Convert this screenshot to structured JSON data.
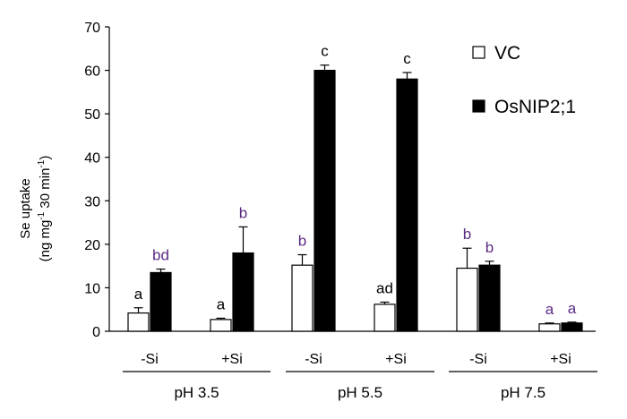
{
  "chart_data": {
    "type": "bar",
    "ylabel_line1": "Se uptake",
    "ylabel_line2_parts": [
      "(ng mg",
      "-1",
      " 30 min",
      "-1",
      ")"
    ],
    "ylim": [
      0,
      70
    ],
    "yticks": [
      0,
      10,
      20,
      30,
      40,
      50,
      60,
      70
    ],
    "legend": {
      "placement": "top-right"
    },
    "series": [
      {
        "name": "VC",
        "fill": "#ffffff"
      },
      {
        "name": "OsNIP2;1",
        "fill": "#000000"
      }
    ],
    "treatment_labels": [
      "-Si",
      "+Si",
      "-Si",
      "+Si",
      "-Si",
      "+Si"
    ],
    "groups": [
      "pH 3.5",
      "pH 5.5",
      "pH 7.5"
    ],
    "bars": [
      {
        "series": "VC",
        "treatment": "-Si",
        "group": "pH 3.5",
        "value": 4.2,
        "err": 1.2,
        "sig": "a"
      },
      {
        "series": "OsNIP2;1",
        "treatment": "-Si",
        "group": "pH 3.5",
        "value": 13.5,
        "err": 0.8,
        "sig": "bd"
      },
      {
        "series": "VC",
        "treatment": "+Si",
        "group": "pH 3.5",
        "value": 2.7,
        "err": 0.3,
        "sig": "a"
      },
      {
        "series": "OsNIP2;1",
        "treatment": "+Si",
        "group": "pH 3.5",
        "value": 18.0,
        "err": 6.0,
        "sig": "b"
      },
      {
        "series": "VC",
        "treatment": "-Si",
        "group": "pH 5.5",
        "value": 15.2,
        "err": 2.4,
        "sig": "b"
      },
      {
        "series": "OsNIP2;1",
        "treatment": "-Si",
        "group": "pH 5.5",
        "value": 60.0,
        "err": 1.2,
        "sig": "c"
      },
      {
        "series": "VC",
        "treatment": "+Si",
        "group": "pH 5.5",
        "value": 6.2,
        "err": 0.5,
        "sig": "ad"
      },
      {
        "series": "OsNIP2;1",
        "treatment": "+Si",
        "group": "pH 5.5",
        "value": 58.0,
        "err": 1.5,
        "sig": "c"
      },
      {
        "series": "VC",
        "treatment": "-Si",
        "group": "pH 7.5",
        "value": 14.5,
        "err": 4.6,
        "sig": "b"
      },
      {
        "series": "OsNIP2;1",
        "treatment": "-Si",
        "group": "pH 7.5",
        "value": 15.2,
        "err": 0.9,
        "sig": "b"
      },
      {
        "series": "VC",
        "treatment": "+Si",
        "group": "pH 7.5",
        "value": 1.7,
        "err": 0.2,
        "sig": "a"
      },
      {
        "series": "OsNIP2;1",
        "treatment": "+Si",
        "group": "pH 7.5",
        "value": 1.9,
        "err": 0.2,
        "sig": "a"
      }
    ],
    "colors": {
      "sig_black": "#000000",
      "sig_purple": "#5a2a82"
    },
    "sig_color_by_bar": [
      "black",
      "purple",
      "black",
      "purple",
      "purple",
      "black",
      "black",
      "black",
      "purple",
      "purple",
      "purple",
      "purple"
    ]
  }
}
